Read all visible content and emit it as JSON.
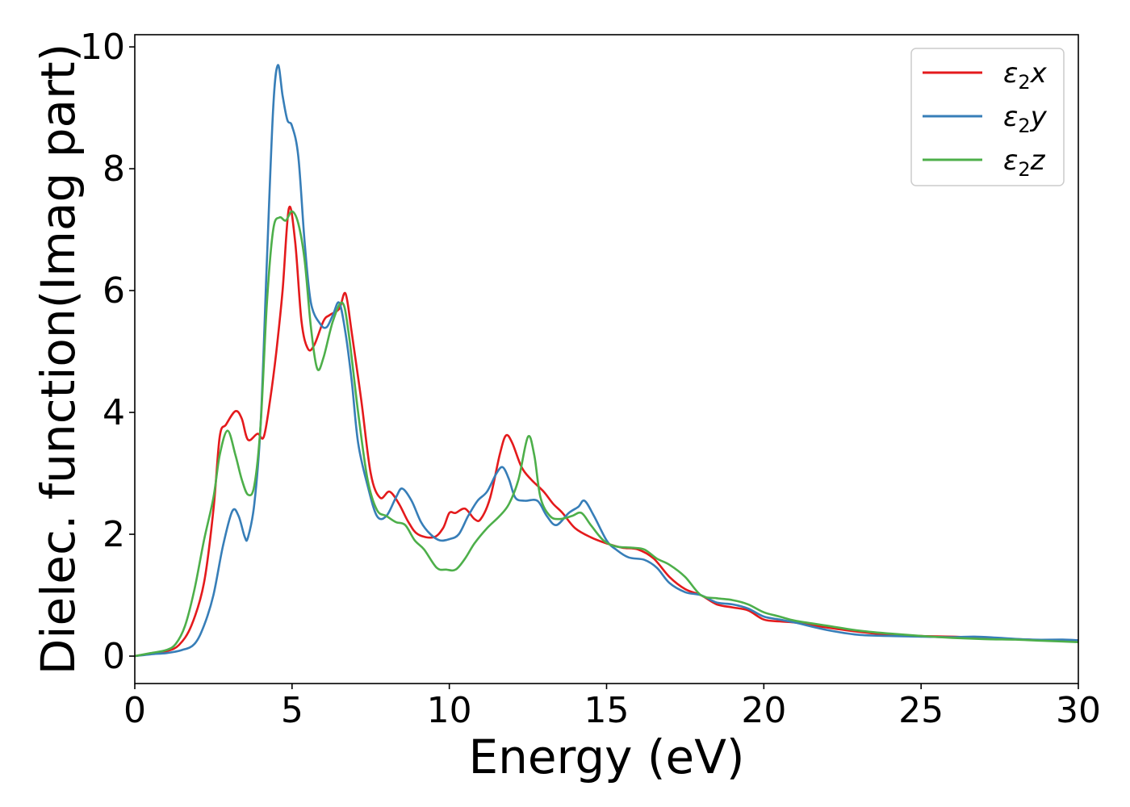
{
  "chart_data": {
    "type": "line",
    "xlabel": "Energy (eV)",
    "ylabel": "Dielec. function(Imag part)",
    "xlim": [
      0,
      30
    ],
    "ylim": [
      -0.45,
      10.2
    ],
    "xticks": [
      0,
      5,
      10,
      15,
      20,
      25,
      30
    ],
    "yticks": [
      0,
      2,
      4,
      6,
      8,
      10
    ],
    "grid": false,
    "legend_position": "top-right",
    "series": [
      {
        "name": "ε2x",
        "legend": {
          "base": "ε",
          "sub": "2",
          "suffix": "x"
        },
        "color": "#e41a1c",
        "points": [
          [
            0,
            0
          ],
          [
            0.5,
            0.04
          ],
          [
            1.0,
            0.08
          ],
          [
            1.4,
            0.18
          ],
          [
            1.8,
            0.5
          ],
          [
            2.2,
            1.2
          ],
          [
            2.5,
            2.4
          ],
          [
            2.7,
            3.6
          ],
          [
            2.9,
            3.8
          ],
          [
            3.2,
            4.02
          ],
          [
            3.4,
            3.9
          ],
          [
            3.6,
            3.55
          ],
          [
            3.9,
            3.65
          ],
          [
            4.1,
            3.6
          ],
          [
            4.3,
            4.2
          ],
          [
            4.5,
            5.0
          ],
          [
            4.7,
            6.0
          ],
          [
            4.9,
            7.35
          ],
          [
            5.1,
            6.8
          ],
          [
            5.3,
            5.5
          ],
          [
            5.5,
            5.05
          ],
          [
            5.7,
            5.1
          ],
          [
            6.0,
            5.5
          ],
          [
            6.2,
            5.6
          ],
          [
            6.5,
            5.7
          ],
          [
            6.7,
            5.95
          ],
          [
            6.9,
            5.3
          ],
          [
            7.2,
            4.2
          ],
          [
            7.5,
            3.0
          ],
          [
            7.8,
            2.6
          ],
          [
            8.1,
            2.7
          ],
          [
            8.4,
            2.5
          ],
          [
            8.7,
            2.2
          ],
          [
            9.0,
            2.0
          ],
          [
            9.5,
            1.95
          ],
          [
            9.8,
            2.1
          ],
          [
            10.0,
            2.35
          ],
          [
            10.2,
            2.35
          ],
          [
            10.5,
            2.42
          ],
          [
            10.8,
            2.25
          ],
          [
            11.0,
            2.25
          ],
          [
            11.3,
            2.6
          ],
          [
            11.6,
            3.3
          ],
          [
            11.8,
            3.62
          ],
          [
            12.0,
            3.5
          ],
          [
            12.3,
            3.1
          ],
          [
            12.6,
            2.9
          ],
          [
            13.0,
            2.7
          ],
          [
            13.3,
            2.5
          ],
          [
            13.6,
            2.35
          ],
          [
            14.0,
            2.1
          ],
          [
            14.5,
            1.95
          ],
          [
            15.0,
            1.85
          ],
          [
            15.5,
            1.78
          ],
          [
            16.0,
            1.75
          ],
          [
            16.5,
            1.6
          ],
          [
            17.0,
            1.3
          ],
          [
            17.5,
            1.1
          ],
          [
            18.0,
            1.0
          ],
          [
            18.5,
            0.85
          ],
          [
            19.0,
            0.8
          ],
          [
            19.5,
            0.75
          ],
          [
            20.0,
            0.6
          ],
          [
            20.5,
            0.57
          ],
          [
            21.0,
            0.55
          ],
          [
            22.0,
            0.47
          ],
          [
            23.0,
            0.4
          ],
          [
            24.0,
            0.35
          ],
          [
            25.0,
            0.33
          ],
          [
            26.0,
            0.32
          ],
          [
            27.0,
            0.3
          ],
          [
            28.0,
            0.28
          ],
          [
            29.0,
            0.26
          ],
          [
            30.0,
            0.26
          ]
        ]
      },
      {
        "name": "ε2y",
        "legend": {
          "base": "ε",
          "sub": "2",
          "suffix": "y"
        },
        "color": "#377eb8",
        "points": [
          [
            0,
            0
          ],
          [
            0.5,
            0.03
          ],
          [
            1.0,
            0.05
          ],
          [
            1.5,
            0.1
          ],
          [
            1.9,
            0.2
          ],
          [
            2.2,
            0.5
          ],
          [
            2.5,
            1.0
          ],
          [
            2.8,
            1.8
          ],
          [
            3.1,
            2.38
          ],
          [
            3.3,
            2.3
          ],
          [
            3.5,
            1.95
          ],
          [
            3.6,
            1.95
          ],
          [
            3.8,
            2.5
          ],
          [
            4.0,
            3.8
          ],
          [
            4.2,
            6.5
          ],
          [
            4.4,
            9.0
          ],
          [
            4.55,
            9.7
          ],
          [
            4.7,
            9.2
          ],
          [
            4.85,
            8.8
          ],
          [
            5.0,
            8.7
          ],
          [
            5.2,
            8.2
          ],
          [
            5.4,
            6.8
          ],
          [
            5.6,
            5.8
          ],
          [
            5.9,
            5.45
          ],
          [
            6.1,
            5.4
          ],
          [
            6.3,
            5.6
          ],
          [
            6.5,
            5.8
          ],
          [
            6.7,
            5.3
          ],
          [
            6.9,
            4.5
          ],
          [
            7.1,
            3.5
          ],
          [
            7.4,
            2.8
          ],
          [
            7.7,
            2.3
          ],
          [
            8.0,
            2.3
          ],
          [
            8.3,
            2.6
          ],
          [
            8.5,
            2.75
          ],
          [
            8.8,
            2.55
          ],
          [
            9.1,
            2.2
          ],
          [
            9.4,
            2.0
          ],
          [
            9.7,
            1.9
          ],
          [
            10.0,
            1.92
          ],
          [
            10.3,
            2.0
          ],
          [
            10.6,
            2.3
          ],
          [
            10.9,
            2.55
          ],
          [
            11.2,
            2.7
          ],
          [
            11.5,
            3.0
          ],
          [
            11.7,
            3.1
          ],
          [
            11.9,
            2.9
          ],
          [
            12.1,
            2.6
          ],
          [
            12.4,
            2.55
          ],
          [
            12.8,
            2.55
          ],
          [
            13.1,
            2.3
          ],
          [
            13.4,
            2.15
          ],
          [
            13.8,
            2.35
          ],
          [
            14.1,
            2.45
          ],
          [
            14.3,
            2.55
          ],
          [
            14.6,
            2.3
          ],
          [
            15.0,
            1.9
          ],
          [
            15.3,
            1.75
          ],
          [
            15.7,
            1.62
          ],
          [
            16.2,
            1.58
          ],
          [
            16.6,
            1.45
          ],
          [
            17.0,
            1.2
          ],
          [
            17.5,
            1.05
          ],
          [
            18.0,
            1.0
          ],
          [
            18.5,
            0.88
          ],
          [
            19.0,
            0.85
          ],
          [
            19.5,
            0.78
          ],
          [
            20.0,
            0.65
          ],
          [
            20.5,
            0.6
          ],
          [
            21.0,
            0.55
          ],
          [
            22.0,
            0.43
          ],
          [
            23.0,
            0.35
          ],
          [
            24.0,
            0.33
          ],
          [
            25.0,
            0.32
          ],
          [
            26.0,
            0.31
          ],
          [
            26.7,
            0.32
          ],
          [
            27.5,
            0.3
          ],
          [
            28.5,
            0.27
          ],
          [
            29.5,
            0.27
          ],
          [
            30.0,
            0.26
          ]
        ]
      },
      {
        "name": "ε2z",
        "legend": {
          "base": "ε",
          "sub": "2",
          "suffix": "z"
        },
        "color": "#4daf4a",
        "points": [
          [
            0,
            0
          ],
          [
            0.5,
            0.05
          ],
          [
            1.0,
            0.1
          ],
          [
            1.3,
            0.2
          ],
          [
            1.6,
            0.5
          ],
          [
            1.9,
            1.1
          ],
          [
            2.2,
            1.9
          ],
          [
            2.5,
            2.6
          ],
          [
            2.7,
            3.3
          ],
          [
            2.95,
            3.7
          ],
          [
            3.2,
            3.3
          ],
          [
            3.4,
            2.9
          ],
          [
            3.6,
            2.65
          ],
          [
            3.8,
            2.8
          ],
          [
            4.0,
            3.8
          ],
          [
            4.2,
            5.8
          ],
          [
            4.4,
            7.0
          ],
          [
            4.6,
            7.2
          ],
          [
            4.8,
            7.15
          ],
          [
            5.0,
            7.3
          ],
          [
            5.2,
            7.1
          ],
          [
            5.4,
            6.5
          ],
          [
            5.6,
            5.4
          ],
          [
            5.8,
            4.72
          ],
          [
            6.0,
            4.9
          ],
          [
            6.3,
            5.5
          ],
          [
            6.6,
            5.8
          ],
          [
            6.8,
            5.3
          ],
          [
            7.1,
            4.0
          ],
          [
            7.4,
            2.9
          ],
          [
            7.7,
            2.4
          ],
          [
            8.0,
            2.3
          ],
          [
            8.3,
            2.2
          ],
          [
            8.6,
            2.15
          ],
          [
            8.9,
            1.9
          ],
          [
            9.2,
            1.75
          ],
          [
            9.6,
            1.45
          ],
          [
            9.9,
            1.42
          ],
          [
            10.2,
            1.42
          ],
          [
            10.5,
            1.6
          ],
          [
            10.8,
            1.85
          ],
          [
            11.2,
            2.1
          ],
          [
            11.6,
            2.3
          ],
          [
            11.9,
            2.5
          ],
          [
            12.2,
            2.9
          ],
          [
            12.5,
            3.6
          ],
          [
            12.7,
            3.3
          ],
          [
            12.9,
            2.6
          ],
          [
            13.2,
            2.3
          ],
          [
            13.5,
            2.25
          ],
          [
            13.9,
            2.3
          ],
          [
            14.2,
            2.35
          ],
          [
            14.5,
            2.15
          ],
          [
            14.9,
            1.9
          ],
          [
            15.3,
            1.8
          ],
          [
            15.8,
            1.78
          ],
          [
            16.2,
            1.75
          ],
          [
            16.6,
            1.6
          ],
          [
            17.0,
            1.5
          ],
          [
            17.5,
            1.3
          ],
          [
            18.0,
            1.0
          ],
          [
            18.5,
            0.95
          ],
          [
            19.0,
            0.92
          ],
          [
            19.5,
            0.85
          ],
          [
            20.0,
            0.72
          ],
          [
            20.5,
            0.65
          ],
          [
            21.0,
            0.58
          ],
          [
            22.0,
            0.5
          ],
          [
            23.0,
            0.42
          ],
          [
            24.0,
            0.37
          ],
          [
            25.0,
            0.33
          ],
          [
            26.0,
            0.3
          ],
          [
            27.0,
            0.28
          ],
          [
            28.0,
            0.27
          ],
          [
            29.0,
            0.25
          ],
          [
            30.0,
            0.23
          ]
        ]
      }
    ]
  }
}
